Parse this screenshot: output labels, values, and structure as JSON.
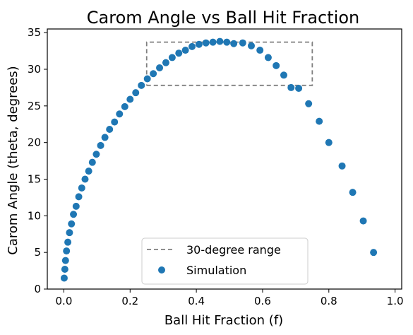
{
  "chart_data": {
    "type": "scatter",
    "title": "Carom Angle vs Ball Hit Fraction",
    "xlabel": "Ball Hit Fraction (f)",
    "ylabel": "Carom Angle (theta, degrees)",
    "xlim": [
      -0.05,
      1.02
    ],
    "ylim": [
      0,
      35.5
    ],
    "x_ticks": [
      0.0,
      0.2,
      0.4,
      0.6,
      0.8,
      1.0
    ],
    "x_tick_labels": [
      "0.0",
      "0.2",
      "0.4",
      "0.6",
      "0.8",
      "1.0"
    ],
    "y_ticks": [
      0,
      5,
      10,
      15,
      20,
      25,
      30,
      35
    ],
    "y_tick_labels": [
      "0",
      "5",
      "10",
      "15",
      "20",
      "25",
      "30",
      "35"
    ],
    "grid": false,
    "legend_position": "lower center",
    "series": [
      {
        "name": "Simulation",
        "type": "scatter",
        "color": "#1f77b4",
        "points": [
          [
            0.001,
            1.5
          ],
          [
            0.003,
            2.7
          ],
          [
            0.005,
            3.9
          ],
          [
            0.008,
            5.2
          ],
          [
            0.012,
            6.4
          ],
          [
            0.017,
            7.7
          ],
          [
            0.023,
            8.9
          ],
          [
            0.029,
            10.2
          ],
          [
            0.037,
            11.3
          ],
          [
            0.045,
            12.6
          ],
          [
            0.054,
            13.8
          ],
          [
            0.064,
            15.0
          ],
          [
            0.075,
            16.1
          ],
          [
            0.086,
            17.3
          ],
          [
            0.098,
            18.4
          ],
          [
            0.111,
            19.6
          ],
          [
            0.124,
            20.7
          ],
          [
            0.138,
            21.8
          ],
          [
            0.153,
            22.8
          ],
          [
            0.168,
            23.9
          ],
          [
            0.184,
            24.9
          ],
          [
            0.2,
            25.9
          ],
          [
            0.217,
            26.8
          ],
          [
            0.234,
            27.8
          ],
          [
            0.252,
            28.7
          ],
          [
            0.27,
            29.4
          ],
          [
            0.289,
            30.2
          ],
          [
            0.308,
            30.9
          ],
          [
            0.327,
            31.6
          ],
          [
            0.347,
            32.2
          ],
          [
            0.367,
            32.6
          ],
          [
            0.387,
            33.1
          ],
          [
            0.408,
            33.4
          ],
          [
            0.429,
            33.6
          ],
          [
            0.45,
            33.7
          ],
          [
            0.471,
            33.8
          ],
          [
            0.492,
            33.7
          ],
          [
            0.513,
            33.5
          ],
          [
            0.54,
            33.6
          ],
          [
            0.566,
            33.2
          ],
          [
            0.592,
            32.6
          ],
          [
            0.617,
            31.6
          ],
          [
            0.641,
            30.5
          ],
          [
            0.664,
            29.2
          ],
          [
            0.686,
            27.5
          ],
          [
            0.709,
            27.4
          ],
          [
            0.739,
            25.3
          ],
          [
            0.771,
            22.9
          ],
          [
            0.8,
            20.0
          ],
          [
            0.84,
            16.8
          ],
          [
            0.872,
            13.2
          ],
          [
            0.904,
            9.3
          ],
          [
            0.935,
            5.0
          ]
        ]
      },
      {
        "name": "30-degree range",
        "type": "line",
        "style": "dashed",
        "color": "#808080",
        "points": [
          [
            0.25,
            27.8
          ],
          [
            0.75,
            27.8
          ],
          [
            0.75,
            33.7
          ],
          [
            0.25,
            33.7
          ],
          [
            0.25,
            27.8
          ]
        ]
      }
    ]
  }
}
